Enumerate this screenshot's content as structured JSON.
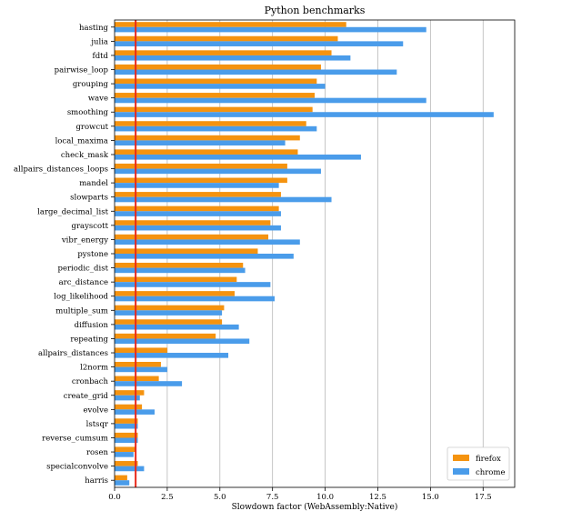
{
  "chart_data": {
    "type": "bar",
    "orientation": "horizontal",
    "title": "Python benchmarks",
    "xlabel": "Slowdown factor (WebAssembly:Native)",
    "ylabel": "",
    "xlim": [
      0,
      19
    ],
    "xticks": [
      0,
      2.5,
      5,
      7.5,
      10,
      12.5,
      15,
      17.5
    ],
    "xtick_labels": [
      "0.0",
      "2.5",
      "5.0",
      "7.5",
      "10.0",
      "12.5",
      "15.0",
      "17.5"
    ],
    "grid": "vertical",
    "reference_line": {
      "x": 1.0,
      "color": "#e8281a"
    },
    "legend_position": "lower-right",
    "categories": [
      "hasting",
      "julia",
      "fdtd",
      "pairwise_loop",
      "grouping",
      "wave",
      "smoothing",
      "growcut",
      "local_maxima",
      "check_mask",
      "allpairs_distances_loops",
      "mandel",
      "slowparts",
      "large_decimal_list",
      "grayscott",
      "vibr_energy",
      "pystone",
      "periodic_dist",
      "arc_distance",
      "log_likelihood",
      "multiple_sum",
      "diffusion",
      "repeating",
      "allpairs_distances",
      "l2norm",
      "cronbach",
      "create_grid",
      "evolve",
      "lstsqr",
      "reverse_cumsum",
      "rosen",
      "specialconvolve",
      "harris"
    ],
    "series": [
      {
        "name": "firefox",
        "color": "#f5930f",
        "values": [
          11.0,
          10.6,
          10.3,
          9.8,
          9.6,
          9.5,
          9.4,
          9.1,
          8.8,
          8.7,
          8.2,
          8.2,
          7.9,
          7.8,
          7.4,
          7.3,
          6.8,
          6.1,
          5.8,
          5.7,
          5.2,
          5.1,
          4.8,
          2.5,
          2.2,
          2.1,
          1.4,
          1.3,
          1.1,
          1.1,
          1.0,
          1.1,
          0.6
        ]
      },
      {
        "name": "chrome",
        "color": "#4a9cea",
        "values": [
          14.8,
          13.7,
          11.2,
          13.4,
          10.0,
          14.8,
          18.0,
          9.6,
          8.1,
          11.7,
          9.8,
          7.8,
          10.3,
          7.9,
          7.9,
          8.8,
          8.5,
          6.2,
          7.4,
          7.6,
          5.1,
          5.9,
          6.4,
          5.4,
          2.5,
          3.2,
          1.2,
          1.9,
          1.1,
          1.1,
          0.9,
          1.4,
          0.7
        ]
      }
    ]
  }
}
